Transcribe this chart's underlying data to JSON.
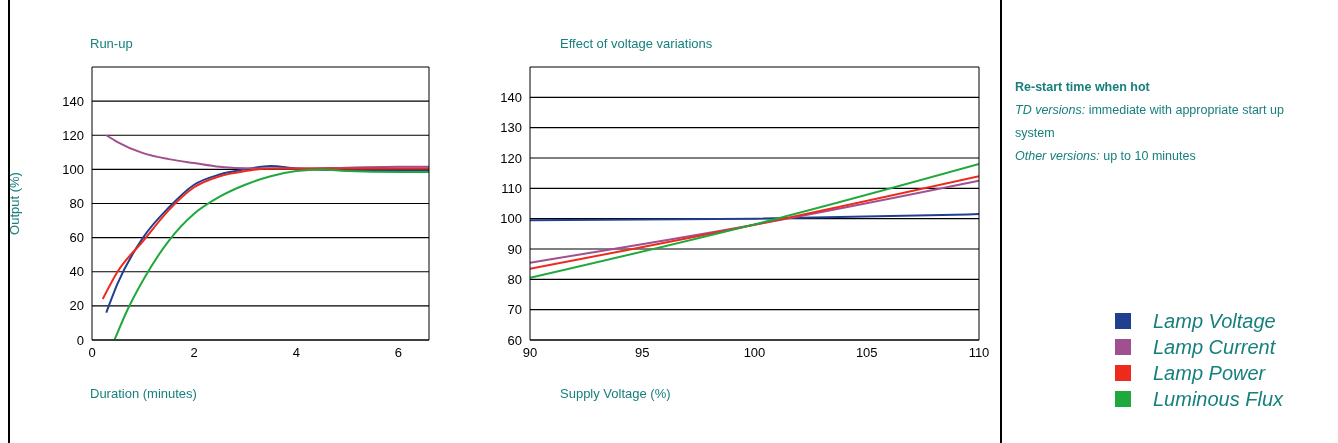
{
  "chart_data": [
    {
      "type": "line",
      "title": "Run-up",
      "xlabel": "Duration (minutes)",
      "ylabel": "Output (%)",
      "xlim": [
        0,
        6.6
      ],
      "xticks": [
        0,
        2,
        4,
        6
      ],
      "ylim": [
        0,
        160
      ],
      "yticks": [
        0,
        20,
        40,
        60,
        80,
        100,
        120,
        140
      ],
      "grid": "y",
      "marker": "none",
      "line_style": "solid",
      "series": [
        {
          "color": "#1f3f8f",
          "x": [
            0.28,
            0.5,
            1,
            1.5,
            2,
            2.5,
            3,
            3.5,
            4,
            5,
            6,
            6.6
          ],
          "values": [
            16,
            33,
            60,
            77.5,
            91,
            97,
            100,
            102,
            100.5,
            99.5,
            99.5,
            99.5
          ]
        },
        {
          "color": "#a0508f",
          "x": [
            0.28,
            0.5,
            1,
            1.5,
            2,
            2.5,
            2.8,
            3.5,
            4,
            5,
            6,
            6.6
          ],
          "values": [
            120,
            116,
            109.5,
            106,
            103.7,
            101.5,
            100.8,
            100.5,
            100.5,
            101,
            101.5,
            101.5
          ]
        },
        {
          "color": "#ee2a1c",
          "x": [
            0.21,
            0.5,
            1,
            1.5,
            2,
            2.5,
            3,
            3.5,
            4,
            5,
            6,
            6.6
          ],
          "values": [
            24,
            40,
            58,
            76,
            89.5,
            96,
            99,
            100.5,
            100.5,
            100.5,
            100.5,
            100.5
          ]
        },
        {
          "color": "#1fa83c",
          "x": [
            0.44,
            0.7,
            1,
            1.5,
            2,
            2.5,
            3,
            3.5,
            4,
            4.5,
            5,
            6,
            6.6
          ],
          "values": [
            0,
            18,
            35,
            58,
            74,
            84,
            91,
            96,
            99,
            100,
            99,
            98.5,
            98.5
          ]
        }
      ]
    },
    {
      "type": "line",
      "title": "Effect of voltage variations",
      "xlabel": "Supply Voltage (%)",
      "xlim": [
        90,
        110
      ],
      "xticks": [
        90,
        95,
        100,
        105,
        110
      ],
      "ylim": [
        60,
        150
      ],
      "yticks": [
        60,
        70,
        80,
        90,
        100,
        110,
        120,
        130,
        140
      ],
      "grid": "y",
      "marker": "none",
      "line_style": "solid",
      "legend": "right",
      "series": [
        {
          "name": "Lamp Voltage",
          "color": "#1f3f8f",
          "x": [
            90,
            100,
            110
          ],
          "values": [
            99.5,
            100,
            101.5
          ]
        },
        {
          "name": "Lamp Current",
          "color": "#a0508f",
          "x": [
            90,
            100,
            110
          ],
          "values": [
            85.5,
            98,
            112.5
          ]
        },
        {
          "name": "Lamp Power",
          "color": "#ee2a1c",
          "x": [
            90,
            100,
            110
          ],
          "values": [
            83.5,
            98,
            114
          ]
        },
        {
          "name": "Luminous Flux",
          "color": "#1fa83c",
          "x": [
            90,
            101,
            110
          ],
          "values": [
            80.5,
            100,
            118
          ]
        }
      ]
    },
    {
      "type": "other",
      "title": "Re-start time when hot",
      "annotations": [
        "TD versions: immediate with appropriate start up system",
        "Other versions: up to 10 minutes"
      ]
    }
  ]
}
